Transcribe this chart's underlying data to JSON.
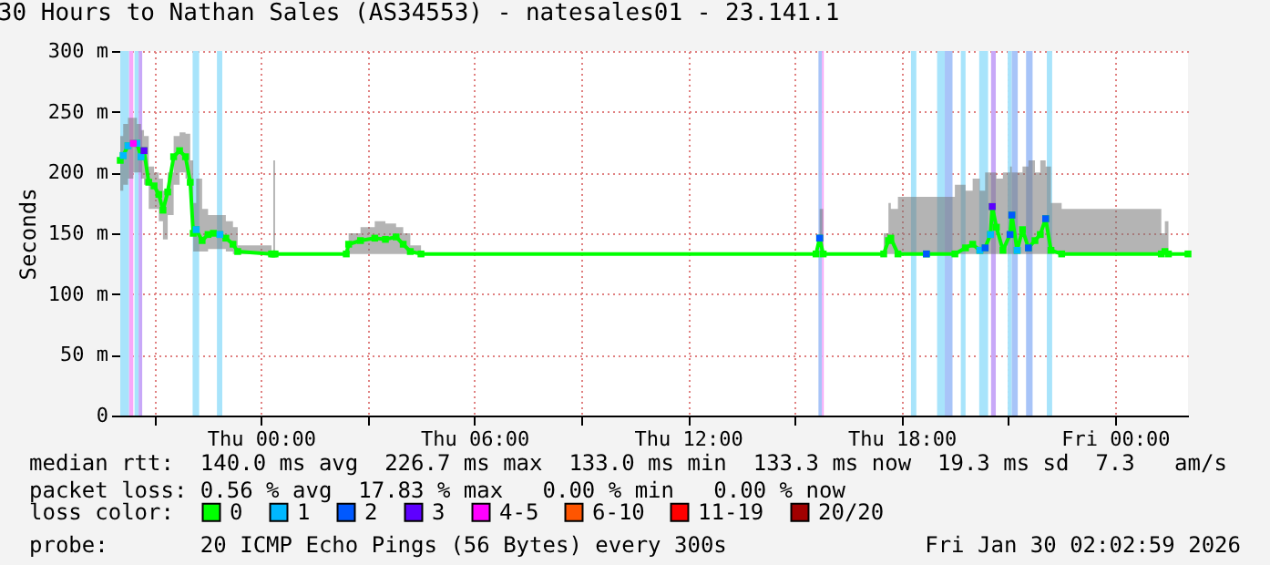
{
  "chart_data": {
    "type": "line",
    "title": "30 Hours to Nathan Sales (AS34553) - natesales01 - 23.141.1",
    "ylabel": "Seconds",
    "legend_title": "loss color:",
    "legend": "bottom",
    "grid": true,
    "marker": "square",
    "line_style": "solid",
    "annotations": [
      "median rtt:  140.0 ms avg  226.7 ms max  133.0 ms min  133.3 ms now  19.3 ms sd  7.3   am/s",
      "packet loss: 0.56 % avg  17.83 % max   0.00 % min   0.00 % now",
      "probe:       20 ICMP Echo Pings (56 Bytes) every 300s",
      "Fri Jan 30 02:02:59 2026"
    ],
    "xlim": [
      "2026-01-28T20:03",
      "2026-01-30T02:03"
    ],
    "xticks": [
      {
        "value": "2026-01-28T21:00",
        "label": null
      },
      {
        "value": "2026-01-29T00:00",
        "label": "Thu 00:00"
      },
      {
        "value": "2026-01-29T03:00",
        "label": null
      },
      {
        "value": "2026-01-29T06:00",
        "label": "Thu 06:00"
      },
      {
        "value": "2026-01-29T09:00",
        "label": null
      },
      {
        "value": "2026-01-29T12:00",
        "label": "Thu 12:00"
      },
      {
        "value": "2026-01-29T15:00",
        "label": null
      },
      {
        "value": "2026-01-29T18:00",
        "label": "Thu 18:00"
      },
      {
        "value": "2026-01-29T21:00",
        "label": null
      },
      {
        "value": "2026-01-30T00:00",
        "label": "Fri 00:00"
      }
    ],
    "ylim": [
      0,
      300
    ],
    "yticks": [
      0,
      {
        "value": 50,
        "label": "50 m"
      },
      {
        "value": 100,
        "label": "100 m"
      },
      {
        "value": 150,
        "label": "150 m"
      },
      {
        "value": 200,
        "label": "200 m"
      },
      {
        "value": 250,
        "label": "250 m"
      },
      {
        "value": 300,
        "label": "300 m"
      }
    ],
    "x": [
      "2026-01-28T20:03",
      "2026-01-28T20:08",
      "2026-01-28T20:16",
      "2026-01-28T20:25",
      "2026-01-28T20:31",
      "2026-01-28T20:38",
      "2026-01-28T20:43",
      "2026-01-28T20:51",
      "2026-01-28T21:00",
      "2026-01-28T21:08",
      "2026-01-28T21:15",
      "2026-01-28T21:23",
      "2026-01-28T21:33",
      "2026-01-28T21:43",
      "2026-01-28T21:53",
      "2026-01-28T22:01",
      "2026-01-28T22:06",
      "2026-01-28T22:11",
      "2026-01-28T22:21",
      "2026-01-28T22:31",
      "2026-01-28T22:40",
      "2026-01-28T22:51",
      "2026-01-28T23:01",
      "2026-01-28T23:13",
      "2026-01-28T23:21",
      "2026-01-29T00:18",
      "2026-01-29T00:21",
      "2026-01-29T00:24",
      "2026-01-29T02:24",
      "2026-01-29T02:28",
      "2026-01-29T02:48",
      "2026-01-29T03:12",
      "2026-01-29T03:30",
      "2026-01-29T03:48",
      "2026-01-29T04:00",
      "2026-01-29T04:12",
      "2026-01-29T04:30",
      "2026-01-29T15:36",
      "2026-01-29T15:42",
      "2026-01-29T15:48",
      "2026-01-29T17:30",
      "2026-01-29T17:38",
      "2026-01-29T17:42",
      "2026-01-29T17:54",
      "2026-01-29T18:42",
      "2026-01-29T19:30",
      "2026-01-29T19:48",
      "2026-01-29T20:00",
      "2026-01-29T20:12",
      "2026-01-29T20:21",
      "2026-01-29T20:30",
      "2026-01-29T20:33",
      "2026-01-29T20:40",
      "2026-01-29T20:51",
      "2026-01-29T21:03",
      "2026-01-29T21:06",
      "2026-01-29T21:15",
      "2026-01-29T21:24",
      "2026-01-29T21:34",
      "2026-01-29T21:45",
      "2026-01-29T21:54",
      "2026-01-29T22:03",
      "2026-01-29T22:12",
      "2026-01-29T22:30",
      "2026-01-30T01:18",
      "2026-01-30T01:24",
      "2026-01-30T01:30",
      "2026-01-30T02:03"
    ],
    "series": [
      {
        "name": "0",
        "type": "line",
        "color": "#00ff00",
        "values": [
          210,
          214,
          222,
          224,
          224,
          213,
          218,
          192,
          189,
          182,
          169,
          184,
          213,
          218,
          213,
          192,
          150,
          153,
          144,
          149,
          150,
          149,
          146,
          141,
          135,
          133,
          133,
          133,
          133,
          141,
          144,
          146,
          145,
          147,
          141,
          135,
          133,
          133,
          146,
          133,
          133,
          144,
          146,
          133,
          133,
          133,
          138,
          141,
          136,
          138,
          149,
          172,
          155,
          136,
          149,
          165,
          136,
          153,
          138,
          144,
          149,
          162,
          136,
          133,
          133,
          135,
          133,
          133
        ],
        "upper": [
          230,
          240,
          245,
          245,
          240,
          235,
          230,
          205,
          200,
          195,
          185,
          200,
          230,
          233,
          232,
          210,
          175,
          195,
          170,
          165,
          165,
          165,
          160,
          155,
          140,
          133,
          210,
          133,
          133,
          150,
          155,
          160,
          158,
          155,
          150,
          140,
          133,
          133,
          170,
          133,
          150,
          175,
          170,
          180,
          180,
          190,
          185,
          195,
          185,
          200,
          200,
          200,
          195,
          200,
          205,
          200,
          200,
          205,
          210,
          200,
          210,
          205,
          175,
          170,
          150,
          160,
          133,
          133
        ],
        "lower": [
          185,
          190,
          195,
          200,
          200,
          195,
          190,
          170,
          170,
          160,
          145,
          165,
          190,
          200,
          195,
          175,
          135,
          135,
          135,
          137,
          137,
          137,
          135,
          133,
          133,
          133,
          133,
          133,
          133,
          133,
          133,
          133,
          133,
          133,
          133,
          133,
          133,
          133,
          133,
          133,
          133,
          133,
          133,
          133,
          133,
          133,
          133,
          133,
          133,
          133,
          133,
          133,
          133,
          133,
          133,
          133,
          133,
          133,
          133,
          133,
          133,
          133,
          133,
          133,
          133,
          133,
          133,
          133
        ]
      },
      {
        "name": "1",
        "type": "scatter",
        "color": "#00b8ff",
        "x": [
          "2026-01-28T20:08",
          "2026-01-28T20:16",
          "2026-01-28T20:31",
          "2026-01-28T20:38",
          "2026-01-28T22:11",
          "2026-01-28T22:51",
          "2026-01-29T20:12",
          "2026-01-29T20:30",
          "2026-01-29T21:15"
        ],
        "values": [
          214,
          222,
          224,
          213,
          153,
          149,
          136,
          149,
          136
        ]
      },
      {
        "name": "2",
        "type": "scatter",
        "color": "#0059ff",
        "x": [
          "2026-01-29T15:42",
          "2026-01-29T18:42",
          "2026-01-29T20:21",
          "2026-01-29T21:03",
          "2026-01-29T21:06",
          "2026-01-29T21:34",
          "2026-01-29T22:03"
        ],
        "values": [
          146,
          133,
          138,
          149,
          165,
          138,
          162
        ]
      },
      {
        "name": "3",
        "type": "scatter",
        "color": "#5e00ff",
        "x": [
          "2026-01-28T20:43",
          "2026-01-29T20:33"
        ],
        "values": [
          218,
          172
        ]
      },
      {
        "name": "4-5",
        "type": "scatter",
        "color": "#ff00ff",
        "x": [
          "2026-01-28T20:25"
        ],
        "values": [
          224
        ]
      },
      {
        "name": "6-10",
        "type": "scatter",
        "color": "#ff5500",
        "values": [
          null,
          null,
          null,
          null,
          null,
          null,
          null,
          null,
          null,
          null,
          null,
          null,
          null,
          null,
          null,
          null,
          null,
          null,
          null,
          null,
          null,
          null,
          null,
          null,
          null,
          null,
          null,
          null,
          null,
          null,
          null,
          null,
          null,
          null,
          null,
          null,
          null,
          null,
          null,
          null,
          null,
          null,
          null,
          null,
          null,
          null,
          null,
          null,
          null,
          null,
          null,
          null,
          null,
          null,
          null,
          null,
          null,
          null,
          null,
          null,
          null,
          null,
          null,
          null,
          null,
          null,
          null,
          null
        ]
      },
      {
        "name": "11-19",
        "type": "scatter",
        "color": "#ff0000",
        "values": [
          null,
          null,
          null,
          null,
          null,
          null,
          null,
          null,
          null,
          null,
          null,
          null,
          null,
          null,
          null,
          null,
          null,
          null,
          null,
          null,
          null,
          null,
          null,
          null,
          null,
          null,
          null,
          null,
          null,
          null,
          null,
          null,
          null,
          null,
          null,
          null,
          null,
          null,
          null,
          null,
          null,
          null,
          null,
          null,
          null,
          null,
          null,
          null,
          null,
          null,
          null,
          null,
          null,
          null,
          null,
          null,
          null,
          null,
          null,
          null,
          null,
          null,
          null,
          null,
          null,
          null,
          null,
          null
        ]
      },
      {
        "name": "20/20",
        "type": "scatter",
        "color": "#a10000",
        "values": [
          null,
          null,
          null,
          null,
          null,
          null,
          null,
          null,
          null,
          null,
          null,
          null,
          null,
          null,
          null,
          null,
          null,
          null,
          null,
          null,
          null,
          null,
          null,
          null,
          null,
          null,
          null,
          null,
          null,
          null,
          null,
          null,
          null,
          null,
          null,
          null,
          null,
          null,
          null,
          null,
          null,
          null,
          null,
          null,
          null,
          null,
          null,
          null,
          null,
          null,
          null,
          null,
          null,
          null,
          null,
          null,
          null,
          null,
          null,
          null,
          null,
          null,
          null,
          null,
          null,
          null,
          null,
          null
        ]
      }
    ],
    "bands": [
      {
        "axis": "x",
        "from": "2026-01-28T20:03",
        "to": "2026-01-28T20:18",
        "color": "#a8e4fb"
      },
      {
        "axis": "x",
        "from": "2026-01-28T20:18",
        "to": "2026-01-28T20:25",
        "color": "#f8a8f8"
      },
      {
        "axis": "x",
        "from": "2026-01-28T20:27",
        "to": "2026-01-28T20:34",
        "color": "#a8e4fb"
      },
      {
        "axis": "x",
        "from": "2026-01-28T20:34",
        "to": "2026-01-28T20:40",
        "color": "#c8a8f8"
      },
      {
        "axis": "x",
        "from": "2026-01-28T22:05",
        "to": "2026-01-28T22:16",
        "color": "#a8e4fb"
      },
      {
        "axis": "x",
        "from": "2026-01-28T22:46",
        "to": "2026-01-28T22:55",
        "color": "#a8e4fb"
      },
      {
        "axis": "x",
        "from": "2026-01-29T15:40",
        "to": "2026-01-29T15:46",
        "color": "#a8c4f8"
      },
      {
        "axis": "x",
        "from": "2026-01-29T15:46",
        "to": "2026-01-29T15:49",
        "color": "#f8a8f8"
      },
      {
        "axis": "x",
        "from": "2026-01-29T18:16",
        "to": "2026-01-29T18:25",
        "color": "#a8e4fb"
      },
      {
        "axis": "x",
        "from": "2026-01-29T19:00",
        "to": "2026-01-29T19:13",
        "color": "#a8e4fb"
      },
      {
        "axis": "x",
        "from": "2026-01-29T19:13",
        "to": "2026-01-29T19:26",
        "color": "#a8c4f8"
      },
      {
        "axis": "x",
        "from": "2026-01-29T19:40",
        "to": "2026-01-29T19:48",
        "color": "#a8e4fb"
      },
      {
        "axis": "x",
        "from": "2026-01-29T20:11",
        "to": "2026-01-29T20:26",
        "color": "#a8e4fb"
      },
      {
        "axis": "x",
        "from": "2026-01-29T20:31",
        "to": "2026-01-29T20:39",
        "color": "#c8a8f8"
      },
      {
        "axis": "x",
        "from": "2026-01-29T20:59",
        "to": "2026-01-29T21:06",
        "color": "#a8e4fb"
      },
      {
        "axis": "x",
        "from": "2026-01-29T21:06",
        "to": "2026-01-29T21:16",
        "color": "#a8c4f8"
      },
      {
        "axis": "x",
        "from": "2026-01-29T21:30",
        "to": "2026-01-29T21:41",
        "color": "#a8c4f8"
      },
      {
        "axis": "x",
        "from": "2026-01-29T22:05",
        "to": "2026-01-29T22:14",
        "color": "#a8e4fb"
      }
    ]
  }
}
